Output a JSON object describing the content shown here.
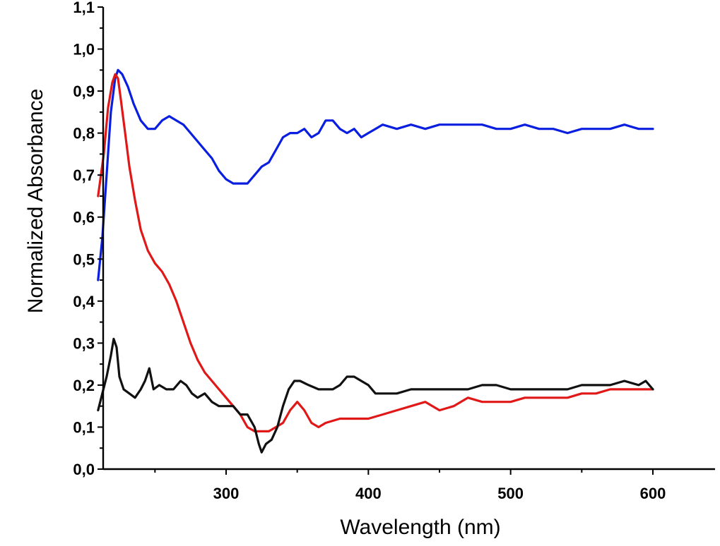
{
  "chart_data": {
    "type": "line",
    "title": "",
    "xlabel": "Wavelength (nm)",
    "ylabel": "Normalized Absorbance",
    "xlim": [
      210,
      650
    ],
    "ylim": [
      0.0,
      1.1
    ],
    "x_ticks": [
      {
        "value": 300,
        "label": "300"
      },
      {
        "value": 400,
        "label": "400"
      },
      {
        "value": 500,
        "label": "500"
      },
      {
        "value": 600,
        "label": "600"
      }
    ],
    "y_ticks": [
      {
        "value": 0.0,
        "label": "0,0"
      },
      {
        "value": 0.1,
        "label": "0,1"
      },
      {
        "value": 0.2,
        "label": "0,2"
      },
      {
        "value": 0.3,
        "label": "0,3"
      },
      {
        "value": 0.4,
        "label": "0,4"
      },
      {
        "value": 0.5,
        "label": "0,5"
      },
      {
        "value": 0.6,
        "label": "0,6"
      },
      {
        "value": 0.7,
        "label": "0,7"
      },
      {
        "value": 0.8,
        "label": "0,8"
      },
      {
        "value": 0.9,
        "label": "0,9"
      },
      {
        "value": 1.0,
        "label": "1,0"
      },
      {
        "value": 1.1,
        "label": "1,1"
      }
    ],
    "grid": false,
    "series": [
      {
        "color": "#0a1ee0",
        "points": [
          [
            210,
            0.45
          ],
          [
            213,
            0.55
          ],
          [
            216,
            0.7
          ],
          [
            219,
            0.85
          ],
          [
            222,
            0.93
          ],
          [
            224,
            0.95
          ],
          [
            227,
            0.94
          ],
          [
            231,
            0.91
          ],
          [
            235,
            0.87
          ],
          [
            240,
            0.83
          ],
          [
            245,
            0.81
          ],
          [
            250,
            0.81
          ],
          [
            255,
            0.83
          ],
          [
            260,
            0.84
          ],
          [
            265,
            0.83
          ],
          [
            270,
            0.82
          ],
          [
            275,
            0.8
          ],
          [
            280,
            0.78
          ],
          [
            285,
            0.76
          ],
          [
            290,
            0.74
          ],
          [
            295,
            0.71
          ],
          [
            300,
            0.69
          ],
          [
            305,
            0.68
          ],
          [
            310,
            0.68
          ],
          [
            315,
            0.68
          ],
          [
            320,
            0.7
          ],
          [
            325,
            0.72
          ],
          [
            330,
            0.73
          ],
          [
            335,
            0.76
          ],
          [
            340,
            0.79
          ],
          [
            345,
            0.8
          ],
          [
            350,
            0.8
          ],
          [
            355,
            0.81
          ],
          [
            360,
            0.79
          ],
          [
            365,
            0.8
          ],
          [
            370,
            0.83
          ],
          [
            375,
            0.83
          ],
          [
            380,
            0.81
          ],
          [
            385,
            0.8
          ],
          [
            390,
            0.81
          ],
          [
            395,
            0.79
          ],
          [
            400,
            0.8
          ],
          [
            405,
            0.81
          ],
          [
            410,
            0.82
          ],
          [
            420,
            0.81
          ],
          [
            430,
            0.82
          ],
          [
            440,
            0.81
          ],
          [
            450,
            0.82
          ],
          [
            460,
            0.82
          ],
          [
            470,
            0.82
          ],
          [
            480,
            0.82
          ],
          [
            490,
            0.81
          ],
          [
            500,
            0.81
          ],
          [
            510,
            0.82
          ],
          [
            520,
            0.81
          ],
          [
            530,
            0.81
          ],
          [
            540,
            0.8
          ],
          [
            550,
            0.81
          ],
          [
            560,
            0.81
          ],
          [
            570,
            0.81
          ],
          [
            580,
            0.82
          ],
          [
            590,
            0.81
          ],
          [
            600,
            0.81
          ]
        ]
      },
      {
        "color": "#e01818",
        "points": [
          [
            210,
            0.65
          ],
          [
            214,
            0.75
          ],
          [
            217,
            0.86
          ],
          [
            220,
            0.92
          ],
          [
            222,
            0.94
          ],
          [
            224,
            0.93
          ],
          [
            226,
            0.88
          ],
          [
            229,
            0.8
          ],
          [
            232,
            0.72
          ],
          [
            236,
            0.64
          ],
          [
            240,
            0.57
          ],
          [
            245,
            0.52
          ],
          [
            250,
            0.49
          ],
          [
            255,
            0.47
          ],
          [
            260,
            0.44
          ],
          [
            265,
            0.4
          ],
          [
            270,
            0.35
          ],
          [
            275,
            0.3
          ],
          [
            280,
            0.26
          ],
          [
            285,
            0.23
          ],
          [
            290,
            0.21
          ],
          [
            295,
            0.19
          ],
          [
            300,
            0.17
          ],
          [
            305,
            0.15
          ],
          [
            310,
            0.13
          ],
          [
            315,
            0.1
          ],
          [
            320,
            0.09
          ],
          [
            325,
            0.09
          ],
          [
            330,
            0.09
          ],
          [
            335,
            0.1
          ],
          [
            340,
            0.11
          ],
          [
            345,
            0.14
          ],
          [
            350,
            0.16
          ],
          [
            355,
            0.14
          ],
          [
            360,
            0.11
          ],
          [
            365,
            0.1
          ],
          [
            370,
            0.11
          ],
          [
            380,
            0.12
          ],
          [
            390,
            0.12
          ],
          [
            400,
            0.12
          ],
          [
            410,
            0.13
          ],
          [
            420,
            0.14
          ],
          [
            430,
            0.15
          ],
          [
            440,
            0.16
          ],
          [
            450,
            0.14
          ],
          [
            460,
            0.15
          ],
          [
            470,
            0.17
          ],
          [
            480,
            0.16
          ],
          [
            490,
            0.16
          ],
          [
            500,
            0.16
          ],
          [
            510,
            0.17
          ],
          [
            520,
            0.17
          ],
          [
            530,
            0.17
          ],
          [
            540,
            0.17
          ],
          [
            550,
            0.18
          ],
          [
            560,
            0.18
          ],
          [
            570,
            0.19
          ],
          [
            580,
            0.19
          ],
          [
            590,
            0.19
          ],
          [
            600,
            0.19
          ]
        ]
      },
      {
        "color": "#111111",
        "points": [
          [
            210,
            0.14
          ],
          [
            213,
            0.18
          ],
          [
            216,
            0.22
          ],
          [
            219,
            0.27
          ],
          [
            221,
            0.31
          ],
          [
            223,
            0.29
          ],
          [
            225,
            0.22
          ],
          [
            228,
            0.19
          ],
          [
            232,
            0.18
          ],
          [
            236,
            0.17
          ],
          [
            240,
            0.19
          ],
          [
            243,
            0.21
          ],
          [
            246,
            0.24
          ],
          [
            249,
            0.19
          ],
          [
            253,
            0.2
          ],
          [
            258,
            0.19
          ],
          [
            263,
            0.19
          ],
          [
            268,
            0.21
          ],
          [
            272,
            0.2
          ],
          [
            276,
            0.18
          ],
          [
            280,
            0.17
          ],
          [
            285,
            0.18
          ],
          [
            290,
            0.16
          ],
          [
            295,
            0.15
          ],
          [
            300,
            0.15
          ],
          [
            305,
            0.15
          ],
          [
            310,
            0.13
          ],
          [
            315,
            0.13
          ],
          [
            320,
            0.1
          ],
          [
            323,
            0.06
          ],
          [
            325,
            0.04
          ],
          [
            328,
            0.06
          ],
          [
            332,
            0.07
          ],
          [
            336,
            0.1
          ],
          [
            340,
            0.15
          ],
          [
            344,
            0.19
          ],
          [
            348,
            0.21
          ],
          [
            352,
            0.21
          ],
          [
            358,
            0.2
          ],
          [
            365,
            0.19
          ],
          [
            370,
            0.19
          ],
          [
            375,
            0.19
          ],
          [
            380,
            0.2
          ],
          [
            385,
            0.22
          ],
          [
            390,
            0.22
          ],
          [
            395,
            0.21
          ],
          [
            400,
            0.2
          ],
          [
            405,
            0.18
          ],
          [
            410,
            0.18
          ],
          [
            420,
            0.18
          ],
          [
            430,
            0.19
          ],
          [
            440,
            0.19
          ],
          [
            450,
            0.19
          ],
          [
            460,
            0.19
          ],
          [
            470,
            0.19
          ],
          [
            480,
            0.2
          ],
          [
            490,
            0.2
          ],
          [
            500,
            0.19
          ],
          [
            510,
            0.19
          ],
          [
            520,
            0.19
          ],
          [
            530,
            0.19
          ],
          [
            540,
            0.19
          ],
          [
            550,
            0.2
          ],
          [
            560,
            0.2
          ],
          [
            570,
            0.2
          ],
          [
            580,
            0.21
          ],
          [
            590,
            0.2
          ],
          [
            595,
            0.21
          ],
          [
            600,
            0.19
          ]
        ]
      }
    ]
  }
}
